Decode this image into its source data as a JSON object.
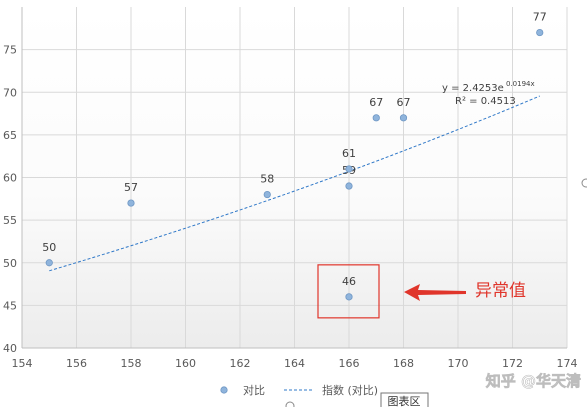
{
  "chart_data": {
    "type": "scatter",
    "xlim": [
      154,
      174
    ],
    "ylim": [
      40,
      80
    ],
    "x_ticks": [
      154,
      156,
      158,
      160,
      162,
      164,
      166,
      168,
      170,
      172,
      174
    ],
    "y_ticks": [
      40,
      45,
      50,
      55,
      60,
      65,
      70,
      75
    ],
    "grid": true,
    "legend_position": "bottom",
    "series": [
      {
        "name": "对比",
        "color": "#8fb4dc",
        "points": [
          {
            "x": 155,
            "y": 50,
            "label": "50"
          },
          {
            "x": 158,
            "y": 57,
            "label": "57"
          },
          {
            "x": 163,
            "y": 58,
            "label": "58"
          },
          {
            "x": 166,
            "y": 59,
            "label": "59"
          },
          {
            "x": 166,
            "y": 61,
            "label": "61"
          },
          {
            "x": 166,
            "y": 46,
            "label": "46"
          },
          {
            "x": 167,
            "y": 67,
            "label": "67"
          },
          {
            "x": 168,
            "y": 67,
            "label": "67"
          },
          {
            "x": 173,
            "y": 77,
            "label": "77"
          }
        ]
      }
    ],
    "trendline": {
      "name": "指数 (对比)",
      "type": "exponential",
      "a": 2.4253,
      "b": 0.0194,
      "x_range": [
        155,
        173
      ],
      "color": "#2f78c8",
      "equation_base": "y = 2.4253e",
      "equation_exponent": "0.0194x",
      "r_squared": "R² = 0.4513"
    },
    "annotation": {
      "text": "异常值",
      "target_x": 166,
      "target_y": 46,
      "color": "#e0352b"
    }
  },
  "overlay": {
    "tooltip": "图表区",
    "watermark": "知乎 @华天清"
  }
}
